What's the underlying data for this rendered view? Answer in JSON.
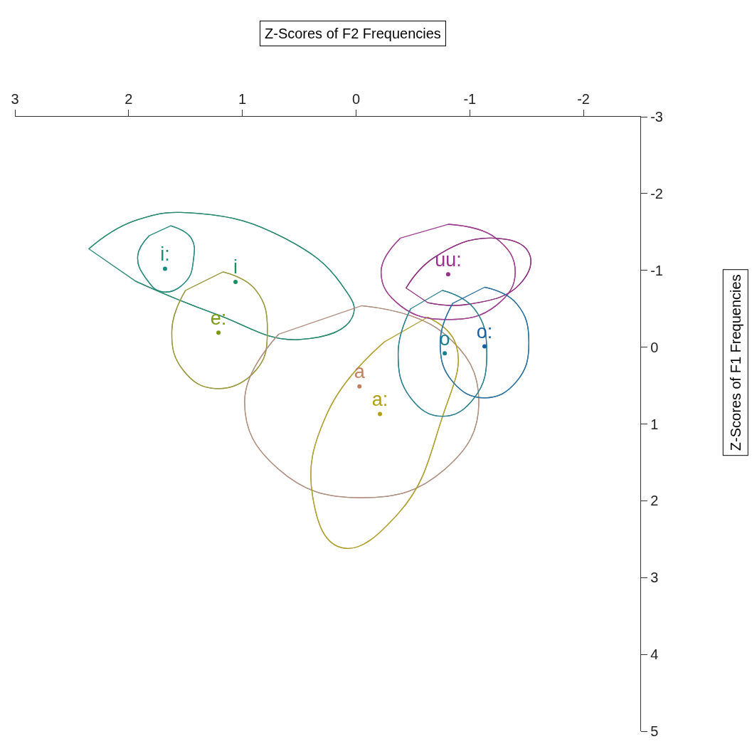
{
  "chart_data": {
    "type": "scatter",
    "xlabel": "Z-Scores of F2 Frequencies",
    "ylabel": "Z-Scores of F1 Frequencies",
    "xlim": [
      3,
      -2.5
    ],
    "xticks": [
      3,
      2,
      1,
      0,
      -1,
      -2
    ],
    "ylim": [
      5,
      -3
    ],
    "yticks": [
      -3,
      -2,
      -1,
      0,
      1,
      2,
      3,
      4,
      5
    ],
    "grid": false,
    "line_style": "solid",
    "series": [
      {
        "type": "line",
        "color": "#2a8a80",
        "x": [
          1.63,
          1.45,
          1.43,
          1.5,
          1.7,
          1.85,
          1.92,
          1.82
        ],
        "values": [
          -1.58,
          -1.42,
          -1.14,
          -0.85,
          -0.72,
          -0.9,
          -1.19,
          -1.45
        ]
      },
      {
        "type": "line",
        "color": "#2a8a70",
        "x": [
          2.35,
          1.94,
          1.38,
          0.63,
          0.13,
          0.03,
          0.5,
          1.25,
          1.94
        ],
        "values": [
          -1.28,
          -1.65,
          -1.74,
          -1.42,
          -0.82,
          -0.4,
          -0.1,
          -0.44,
          -0.86
        ]
      },
      {
        "type": "line",
        "color": "#9a9a40",
        "x": [
          1.17,
          0.88,
          0.78,
          0.88,
          1.23,
          1.52,
          1.62,
          1.5
        ],
        "values": [
          -0.98,
          -0.74,
          -0.2,
          0.3,
          0.54,
          0.3,
          -0.22,
          -0.74
        ]
      },
      {
        "type": "line",
        "color": "#b09080",
        "x": [
          -0.05,
          -0.78,
          -1.08,
          -0.78,
          -0.05,
          0.68,
          0.98,
          0.68
        ],
        "values": [
          -0.54,
          -0.17,
          0.71,
          1.59,
          1.96,
          1.59,
          0.71,
          -0.17
        ]
      },
      {
        "type": "line",
        "color": "#b0a030",
        "x": [
          -0.63,
          -0.88,
          -0.75,
          -0.38,
          0.13,
          0.38,
          0.25,
          -0.25
        ],
        "values": [
          -0.39,
          -0.03,
          0.95,
          2.15,
          2.61,
          1.96,
          0.85,
          -0.07
        ]
      },
      {
        "type": "line",
        "color": "#a04090",
        "x": [
          -0.81,
          -1.23,
          -1.4,
          -1.23,
          -0.81,
          -0.39,
          -0.22,
          -0.39
        ],
        "values": [
          -1.6,
          -1.42,
          -0.98,
          -0.54,
          -0.36,
          -0.54,
          -0.98,
          -1.42
        ]
      },
      {
        "type": "line",
        "color": "#903080",
        "x": [
          -0.44,
          -0.69,
          -1.19,
          -1.52,
          -1.44,
          -1.0,
          -0.63
        ],
        "values": [
          -0.77,
          -1.17,
          -1.42,
          -1.23,
          -0.82,
          -0.56,
          -0.58
        ]
      },
      {
        "type": "line",
        "color": "#2a8090",
        "x": [
          -0.76,
          -1.04,
          -1.15,
          -1.04,
          -0.76,
          -0.48,
          -0.37,
          -0.48
        ],
        "values": [
          -0.74,
          -0.5,
          0.08,
          0.66,
          0.9,
          0.66,
          0.08,
          -0.5
        ]
      },
      {
        "type": "line",
        "color": "#2a70a0",
        "x": [
          -1.13,
          -1.41,
          -1.52,
          -1.41,
          -1.13,
          -0.85,
          -0.74,
          -0.85
        ],
        "values": [
          -0.78,
          -0.57,
          -0.06,
          0.45,
          0.66,
          0.45,
          -0.06,
          -0.57
        ]
      },
      {
        "name": "i:",
        "color": "#1a8a7a",
        "x": [
          1.68
        ],
        "values": [
          -1.02
        ]
      },
      {
        "name": "i",
        "color": "#1a9060",
        "x": [
          1.06
        ],
        "values": [
          -0.85
        ]
      },
      {
        "name": "e:",
        "color": "#7a9a10",
        "x": [
          1.21
        ],
        "values": [
          -0.19
        ]
      },
      {
        "name": "a",
        "color": "#c08060",
        "x": [
          -0.03
        ],
        "values": [
          0.51
        ]
      },
      {
        "name": "a:",
        "color": "#b0a010",
        "x": [
          -0.21
        ],
        "values": [
          0.87
        ]
      },
      {
        "name": "uu:",
        "color": "#9a3090",
        "x": [
          -0.81
        ],
        "values": [
          -0.95
        ]
      },
      {
        "name": "o",
        "color": "#1a8090",
        "x": [
          -0.78
        ],
        "values": [
          0.08
        ]
      },
      {
        "name": "o:",
        "color": "#1a60a0",
        "x": [
          -1.13
        ],
        "values": [
          -0.01
        ]
      }
    ]
  }
}
